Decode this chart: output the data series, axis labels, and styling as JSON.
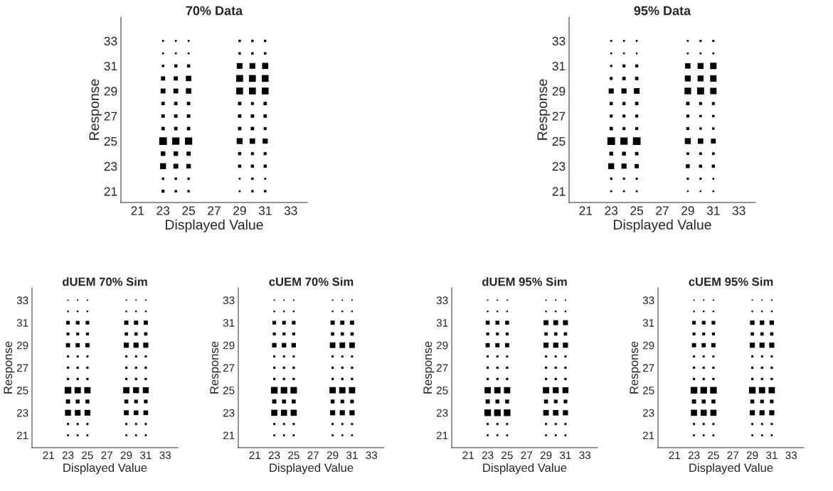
{
  "chart_data": [
    {
      "type": "bubble",
      "title": "70% Data",
      "xlabel": "Displayed Value",
      "ylabel": "Response",
      "marker": "square",
      "color": "#000000",
      "grid": false,
      "xlim": [
        19.7,
        34.3
      ],
      "ylim": [
        20.1,
        34.9
      ],
      "xticks": [
        21,
        23,
        25,
        27,
        29,
        31,
        33
      ],
      "yticks": [
        21,
        23,
        25,
        27,
        29,
        31,
        33
      ],
      "x": [
        23,
        24,
        25,
        29,
        30,
        31,
        23,
        24,
        25,
        29,
        30,
        31,
        23,
        24,
        25,
        29,
        30,
        31,
        23,
        24,
        25,
        29,
        30,
        31,
        23,
        24,
        25,
        29,
        30,
        31,
        23,
        24,
        25,
        29,
        30,
        31,
        23,
        24,
        25,
        29,
        30,
        31,
        23,
        24,
        25,
        29,
        30,
        31,
        23,
        24,
        25,
        29,
        30,
        31,
        23,
        24,
        25,
        29,
        30,
        31,
        23,
        24,
        25,
        29,
        30,
        31,
        23,
        24,
        25,
        29,
        30,
        31,
        23,
        24,
        25,
        29,
        30,
        31
      ],
      "values": [
        33,
        33,
        33,
        33,
        33,
        33,
        32,
        32,
        32,
        32,
        32,
        32,
        31,
        31,
        31,
        31,
        31,
        31,
        30,
        30,
        30,
        30,
        30,
        30,
        29,
        29,
        29,
        29,
        29,
        29,
        28,
        28,
        28,
        28,
        28,
        28,
        27,
        27,
        27,
        27,
        27,
        27,
        26,
        26,
        26,
        26,
        26,
        26,
        25,
        25,
        25,
        25,
        25,
        25,
        24,
        24,
        24,
        24,
        24,
        24,
        23,
        23,
        23,
        23,
        23,
        23,
        22,
        22,
        22,
        22,
        22,
        22,
        21,
        21,
        21,
        21,
        21,
        21
      ],
      "sizes": [
        0.06,
        0.06,
        0.06,
        0.1,
        0.1,
        0.1,
        0.06,
        0.06,
        0.06,
        0.1,
        0.1,
        0.1,
        0.1,
        0.17,
        0.17,
        0.56,
        0.56,
        0.64,
        0.3,
        0.3,
        0.5,
        0.8,
        0.8,
        0.8,
        0.4,
        0.4,
        0.5,
        0.8,
        0.8,
        0.8,
        0.2,
        0.2,
        0.2,
        0.2,
        0.15,
        0.2,
        0.2,
        0.2,
        0.2,
        0.2,
        0.2,
        0.2,
        0.2,
        0.2,
        0.2,
        0.2,
        0.2,
        0.15,
        1,
        0.9,
        0.9,
        0.6,
        0.5,
        0.45,
        0.35,
        0.35,
        0.3,
        0.17,
        0.15,
        0.15,
        0.6,
        0.4,
        0.35,
        0.17,
        0.17,
        0.17,
        0.1,
        0.1,
        0.1,
        0.06,
        0.1,
        0.06,
        0.15,
        0.1,
        0.1,
        0.06,
        0.1,
        0.1
      ]
    },
    {
      "type": "bubble",
      "title": "95% Data",
      "xlabel": "Displayed Value",
      "ylabel": "Response",
      "marker": "square",
      "color": "#000000",
      "grid": false,
      "xlim": [
        19.7,
        34.3
      ],
      "ylim": [
        20.1,
        34.9
      ],
      "xticks": [
        21,
        23,
        25,
        27,
        29,
        31,
        33
      ],
      "yticks": [
        21,
        23,
        25,
        27,
        29,
        31,
        33
      ],
      "x": [
        23,
        24,
        25,
        29,
        30,
        31,
        23,
        24,
        25,
        29,
        30,
        31,
        23,
        24,
        25,
        29,
        30,
        31,
        23,
        24,
        25,
        29,
        30,
        31,
        23,
        24,
        25,
        29,
        30,
        31,
        23,
        24,
        25,
        29,
        30,
        31,
        23,
        24,
        25,
        29,
        30,
        31,
        23,
        24,
        25,
        29,
        30,
        31,
        23,
        24,
        25,
        29,
        30,
        31,
        23,
        24,
        25,
        29,
        30,
        31,
        23,
        24,
        25,
        29,
        30,
        31,
        23,
        24,
        25,
        29,
        30,
        31,
        23,
        24,
        25,
        29,
        30,
        31
      ],
      "values": [
        33,
        33,
        33,
        33,
        33,
        33,
        32,
        32,
        32,
        32,
        32,
        32,
        31,
        31,
        31,
        31,
        31,
        31,
        30,
        30,
        30,
        30,
        30,
        30,
        29,
        29,
        29,
        29,
        29,
        29,
        28,
        28,
        28,
        28,
        28,
        28,
        27,
        27,
        27,
        27,
        27,
        27,
        26,
        26,
        26,
        26,
        26,
        26,
        25,
        25,
        25,
        25,
        25,
        25,
        24,
        24,
        24,
        24,
        24,
        24,
        23,
        23,
        23,
        23,
        23,
        23,
        22,
        22,
        22,
        22,
        22,
        22,
        21,
        21,
        21,
        21,
        21,
        21
      ],
      "sizes": [
        0.06,
        0.06,
        0.06,
        0.06,
        0.08,
        0.08,
        0.05,
        0.05,
        0.05,
        0.06,
        0.06,
        0.06,
        0.08,
        0.15,
        0.15,
        0.5,
        0.6,
        0.7,
        0.15,
        0.2,
        0.2,
        0.6,
        0.6,
        0.7,
        0.45,
        0.45,
        0.55,
        0.75,
        0.85,
        0.7,
        0.17,
        0.17,
        0.2,
        0.2,
        0.15,
        0.15,
        0.15,
        0.15,
        0.15,
        0.15,
        0.1,
        0.1,
        0.2,
        0.15,
        0.15,
        0.15,
        0.1,
        0.1,
        1,
        0.9,
        1,
        0.6,
        0.5,
        0.4,
        0.25,
        0.25,
        0.2,
        0.12,
        0.12,
        0.12,
        0.6,
        0.45,
        0.3,
        0.25,
        0.17,
        0.17,
        0.1,
        0.08,
        0.08,
        0.08,
        0.08,
        0.06,
        0.06,
        0.06,
        0.06,
        0.05,
        0.05,
        0.05
      ]
    },
    {
      "type": "bubble",
      "title": "dUEM 70% Sim",
      "xlabel": "Displayed Value",
      "ylabel": "Response",
      "marker": "square",
      "color": "#000000",
      "grid": false,
      "xlim": [
        19.3,
        34.3
      ],
      "ylim": [
        19.9,
        34.1
      ],
      "xticks": [
        21,
        23,
        25,
        27,
        29,
        31,
        33
      ],
      "yticks": [
        21,
        23,
        25,
        27,
        29,
        31,
        33
      ],
      "x": [
        23,
        24,
        25,
        29,
        30,
        31,
        23,
        24,
        25,
        29,
        30,
        31,
        23,
        24,
        25,
        29,
        30,
        31,
        23,
        24,
        25,
        29,
        30,
        31,
        23,
        24,
        25,
        29,
        30,
        31,
        23,
        24,
        25,
        29,
        30,
        31,
        23,
        24,
        25,
        29,
        30,
        31,
        23,
        24,
        25,
        29,
        30,
        31,
        23,
        24,
        25,
        29,
        30,
        31,
        23,
        24,
        25,
        29,
        30,
        31,
        23,
        24,
        25,
        29,
        30,
        31,
        23,
        24,
        25,
        29,
        30,
        31,
        23,
        24,
        25,
        29,
        30,
        31
      ],
      "values": [
        33,
        33,
        33,
        33,
        33,
        33,
        32,
        32,
        32,
        32,
        32,
        32,
        31,
        31,
        31,
        31,
        31,
        31,
        30,
        30,
        30,
        30,
        30,
        30,
        29,
        29,
        29,
        29,
        29,
        29,
        28,
        28,
        28,
        28,
        28,
        28,
        27,
        27,
        27,
        27,
        27,
        27,
        26,
        26,
        26,
        26,
        26,
        26,
        25,
        25,
        25,
        25,
        25,
        25,
        24,
        24,
        24,
        24,
        24,
        24,
        23,
        23,
        23,
        23,
        23,
        23,
        22,
        22,
        22,
        22,
        22,
        22,
        21,
        21,
        21,
        21,
        21,
        21
      ],
      "sizes": [
        0.04,
        0.04,
        0.04,
        0.04,
        0.04,
        0.04,
        0.06,
        0.06,
        0.06,
        0.06,
        0.06,
        0.06,
        0.3,
        0.3,
        0.3,
        0.4,
        0.4,
        0.4,
        0.2,
        0.2,
        0.2,
        0.25,
        0.25,
        0.25,
        0.4,
        0.4,
        0.4,
        0.6,
        0.6,
        0.6,
        0.1,
        0.1,
        0.1,
        0.1,
        0.1,
        0.1,
        0.12,
        0.12,
        0.12,
        0.12,
        0.12,
        0.12,
        0.12,
        0.12,
        0.12,
        0.12,
        0.12,
        0.12,
        1,
        0.9,
        0.9,
        0.9,
        0.8,
        0.8,
        0.4,
        0.35,
        0.35,
        0.35,
        0.3,
        0.3,
        0.8,
        0.75,
        0.75,
        0.55,
        0.5,
        0.5,
        0.1,
        0.1,
        0.1,
        0.1,
        0.1,
        0.1,
        0.08,
        0.08,
        0.08,
        0.08,
        0.08,
        0.08
      ]
    },
    {
      "type": "bubble",
      "title": "cUEM 70% Sim",
      "xlabel": "Displayed Value",
      "ylabel": "Response",
      "marker": "square",
      "color": "#000000",
      "grid": false,
      "xlim": [
        19.3,
        34.3
      ],
      "ylim": [
        19.9,
        34.1
      ],
      "xticks": [
        21,
        23,
        25,
        27,
        29,
        31,
        33
      ],
      "yticks": [
        21,
        23,
        25,
        27,
        29,
        31,
        33
      ],
      "x": [
        23,
        24,
        25,
        29,
        30,
        31,
        23,
        24,
        25,
        29,
        30,
        31,
        23,
        24,
        25,
        29,
        30,
        31,
        23,
        24,
        25,
        29,
        30,
        31,
        23,
        24,
        25,
        29,
        30,
        31,
        23,
        24,
        25,
        29,
        30,
        31,
        23,
        24,
        25,
        29,
        30,
        31,
        23,
        24,
        25,
        29,
        30,
        31,
        23,
        24,
        25,
        29,
        30,
        31,
        23,
        24,
        25,
        29,
        30,
        31,
        23,
        24,
        25,
        29,
        30,
        31,
        23,
        24,
        25,
        29,
        30,
        31,
        23,
        24,
        25,
        29,
        30,
        31
      ],
      "values": [
        33,
        33,
        33,
        33,
        33,
        33,
        32,
        32,
        32,
        32,
        32,
        32,
        31,
        31,
        31,
        31,
        31,
        31,
        30,
        30,
        30,
        30,
        30,
        30,
        29,
        29,
        29,
        29,
        29,
        29,
        28,
        28,
        28,
        28,
        28,
        28,
        27,
        27,
        27,
        27,
        27,
        27,
        26,
        26,
        26,
        26,
        26,
        26,
        25,
        25,
        25,
        25,
        25,
        25,
        24,
        24,
        24,
        24,
        24,
        24,
        23,
        23,
        23,
        23,
        23,
        23,
        22,
        22,
        22,
        22,
        22,
        22,
        21,
        21,
        21,
        21,
        21,
        21
      ],
      "sizes": [
        0.04,
        0.04,
        0.04,
        0.04,
        0.04,
        0.04,
        0.06,
        0.06,
        0.06,
        0.06,
        0.06,
        0.06,
        0.3,
        0.3,
        0.3,
        0.4,
        0.4,
        0.4,
        0.2,
        0.2,
        0.2,
        0.25,
        0.25,
        0.25,
        0.45,
        0.45,
        0.45,
        0.7,
        0.7,
        0.7,
        0.1,
        0.1,
        0.1,
        0.1,
        0.1,
        0.1,
        0.12,
        0.12,
        0.12,
        0.12,
        0.12,
        0.12,
        0.12,
        0.12,
        0.12,
        0.12,
        0.12,
        0.12,
        1,
        0.95,
        0.95,
        0.9,
        0.9,
        0.9,
        0.4,
        0.35,
        0.35,
        0.35,
        0.3,
        0.3,
        0.85,
        0.85,
        0.85,
        0.6,
        0.6,
        0.6,
        0.1,
        0.1,
        0.1,
        0.1,
        0.1,
        0.1,
        0.08,
        0.08,
        0.08,
        0.08,
        0.08,
        0.08
      ]
    },
    {
      "type": "bubble",
      "title": "dUEM 95% Sim",
      "xlabel": "Displayed Value",
      "ylabel": "Response",
      "marker": "square",
      "color": "#000000",
      "grid": false,
      "xlim": [
        19.3,
        34.3
      ],
      "ylim": [
        19.9,
        34.1
      ],
      "xticks": [
        21,
        23,
        25,
        27,
        29,
        31,
        33
      ],
      "yticks": [
        21,
        23,
        25,
        27,
        29,
        31,
        33
      ],
      "x": [
        23,
        24,
        25,
        29,
        30,
        31,
        23,
        24,
        25,
        29,
        30,
        31,
        23,
        24,
        25,
        29,
        30,
        31,
        23,
        24,
        25,
        29,
        30,
        31,
        23,
        24,
        25,
        29,
        30,
        31,
        23,
        24,
        25,
        29,
        30,
        31,
        23,
        24,
        25,
        29,
        30,
        31,
        23,
        24,
        25,
        29,
        30,
        31,
        23,
        24,
        25,
        29,
        30,
        31,
        23,
        24,
        25,
        29,
        30,
        31,
        23,
        24,
        25,
        29,
        30,
        31,
        23,
        24,
        25,
        29,
        30,
        31,
        23,
        24,
        25,
        29,
        30,
        31
      ],
      "values": [
        33,
        33,
        33,
        33,
        33,
        33,
        32,
        32,
        32,
        32,
        32,
        32,
        31,
        31,
        31,
        31,
        31,
        31,
        30,
        30,
        30,
        30,
        30,
        30,
        29,
        29,
        29,
        29,
        29,
        29,
        28,
        28,
        28,
        28,
        28,
        28,
        27,
        27,
        27,
        27,
        27,
        27,
        26,
        26,
        26,
        26,
        26,
        26,
        25,
        25,
        25,
        25,
        25,
        25,
        24,
        24,
        24,
        24,
        24,
        24,
        23,
        23,
        23,
        23,
        23,
        23,
        22,
        22,
        22,
        22,
        22,
        22,
        21,
        21,
        21,
        21,
        21,
        21
      ],
      "sizes": [
        0.04,
        0.04,
        0.04,
        0.04,
        0.04,
        0.04,
        0.06,
        0.06,
        0.06,
        0.06,
        0.06,
        0.06,
        0.35,
        0.35,
        0.35,
        0.55,
        0.55,
        0.55,
        0.2,
        0.2,
        0.2,
        0.25,
        0.25,
        0.25,
        0.4,
        0.4,
        0.4,
        0.6,
        0.6,
        0.6,
        0.1,
        0.1,
        0.1,
        0.1,
        0.1,
        0.1,
        0.12,
        0.12,
        0.12,
        0.12,
        0.12,
        0.12,
        0.12,
        0.12,
        0.12,
        0.12,
        0.12,
        0.12,
        0.9,
        0.9,
        0.9,
        0.9,
        0.8,
        0.8,
        0.4,
        0.35,
        0.35,
        0.35,
        0.3,
        0.3,
        1,
        1,
        1,
        0.7,
        0.7,
        0.6,
        0.1,
        0.1,
        0.1,
        0.1,
        0.1,
        0.1,
        0.08,
        0.08,
        0.08,
        0.08,
        0.08,
        0.08
      ]
    },
    {
      "type": "bubble",
      "title": "cUEM 95% Sim",
      "xlabel": "Displayed Value",
      "ylabel": "Response",
      "marker": "square",
      "color": "#000000",
      "grid": false,
      "xlim": [
        19.3,
        34.3
      ],
      "ylim": [
        19.9,
        34.1
      ],
      "xticks": [
        21,
        23,
        25,
        27,
        29,
        31,
        33
      ],
      "yticks": [
        21,
        23,
        25,
        27,
        29,
        31,
        33
      ],
      "x": [
        23,
        24,
        25,
        29,
        30,
        31,
        23,
        24,
        25,
        29,
        30,
        31,
        23,
        24,
        25,
        29,
        30,
        31,
        23,
        24,
        25,
        29,
        30,
        31,
        23,
        24,
        25,
        29,
        30,
        31,
        23,
        24,
        25,
        29,
        30,
        31,
        23,
        24,
        25,
        29,
        30,
        31,
        23,
        24,
        25,
        29,
        30,
        31,
        23,
        24,
        25,
        29,
        30,
        31,
        23,
        24,
        25,
        29,
        30,
        31,
        23,
        24,
        25,
        29,
        30,
        31,
        23,
        24,
        25,
        29,
        30,
        31,
        23,
        24,
        25,
        29,
        30,
        31
      ],
      "values": [
        33,
        33,
        33,
        33,
        33,
        33,
        32,
        32,
        32,
        32,
        32,
        32,
        31,
        31,
        31,
        31,
        31,
        31,
        30,
        30,
        30,
        30,
        30,
        30,
        29,
        29,
        29,
        29,
        29,
        29,
        28,
        28,
        28,
        28,
        28,
        28,
        27,
        27,
        27,
        27,
        27,
        27,
        26,
        26,
        26,
        26,
        26,
        26,
        25,
        25,
        25,
        25,
        25,
        25,
        24,
        24,
        24,
        24,
        24,
        24,
        23,
        23,
        23,
        23,
        23,
        23,
        22,
        22,
        22,
        22,
        22,
        22,
        21,
        21,
        21,
        21,
        21,
        21
      ],
      "sizes": [
        0.04,
        0.04,
        0.04,
        0.04,
        0.04,
        0.04,
        0.06,
        0.06,
        0.06,
        0.06,
        0.06,
        0.06,
        0.3,
        0.3,
        0.3,
        0.45,
        0.45,
        0.45,
        0.2,
        0.2,
        0.2,
        0.25,
        0.25,
        0.25,
        0.4,
        0.4,
        0.4,
        0.6,
        0.6,
        0.6,
        0.1,
        0.1,
        0.1,
        0.1,
        0.1,
        0.1,
        0.12,
        0.12,
        0.12,
        0.12,
        0.12,
        0.12,
        0.12,
        0.12,
        0.12,
        0.12,
        0.12,
        0.12,
        1,
        1,
        1,
        1,
        0.9,
        0.9,
        0.4,
        0.35,
        0.35,
        0.35,
        0.3,
        0.3,
        0.85,
        0.85,
        0.85,
        0.6,
        0.6,
        0.6,
        0.1,
        0.1,
        0.1,
        0.1,
        0.1,
        0.1,
        0.08,
        0.08,
        0.08,
        0.08,
        0.08,
        0.08
      ]
    }
  ]
}
